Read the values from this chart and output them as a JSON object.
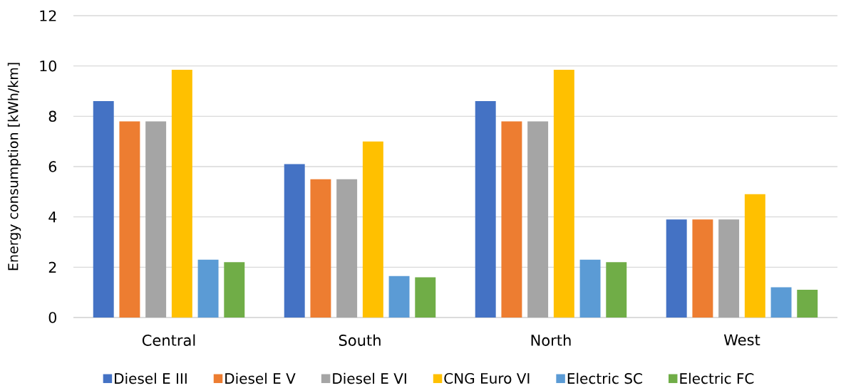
{
  "chart_data": {
    "type": "bar",
    "ylabel": "Energy consumption [kWh/km]",
    "categories": [
      "Central",
      "South",
      "North",
      "West"
    ],
    "series": [
      {
        "name": "Diesel E III",
        "color": "#4472c4",
        "values": [
          8.6,
          6.1,
          8.6,
          3.9
        ]
      },
      {
        "name": "Diesel E V",
        "color": "#ed7d31",
        "values": [
          7.8,
          5.5,
          7.8,
          3.9
        ]
      },
      {
        "name": "Diesel E VI",
        "color": "#a5a5a5",
        "values": [
          7.8,
          5.5,
          7.8,
          3.9
        ]
      },
      {
        "name": "CNG Euro VI",
        "color": "#ffc000",
        "values": [
          9.85,
          7.0,
          9.85,
          4.9
        ]
      },
      {
        "name": "Electric SC",
        "color": "#5b9bd5",
        "values": [
          2.3,
          1.65,
          2.3,
          1.2
        ]
      },
      {
        "name": "Electric FC",
        "color": "#70ad47",
        "values": [
          2.2,
          1.6,
          2.2,
          1.1
        ]
      }
    ],
    "ylim": [
      0,
      12
    ],
    "yticks": [
      0,
      2,
      4,
      6,
      8,
      10,
      12
    ],
    "grid": "y",
    "legend": "bottom"
  }
}
